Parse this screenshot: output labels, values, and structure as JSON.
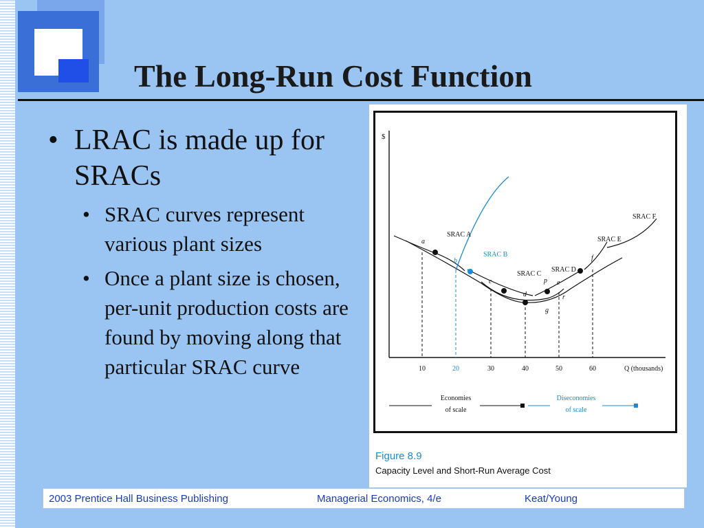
{
  "slide": {
    "title": "The Long-Run Cost Function",
    "bullets": [
      {
        "text": "LRAC is made up for SRACs",
        "sub": [
          "SRAC curves represent various plant sizes",
          "Once a plant size is chosen, per-unit production costs are found by moving along that particular SRAC curve"
        ]
      }
    ]
  },
  "figure": {
    "number": "Figure 8.9",
    "caption": "Capacity Level and Short-Run Average Cost",
    "y_axis_label": "$",
    "x_axis_label": "Q (thousands)",
    "x_ticks": [
      "10",
      "20",
      "30",
      "40",
      "50",
      "60"
    ],
    "curve_labels": [
      "SRAC A",
      "SRAC B",
      "SRAC C",
      "SRAC D",
      "SRAC E",
      "SRAC F"
    ],
    "point_labels": [
      "a",
      "b",
      "c",
      "d",
      "e",
      "f",
      "g",
      "p",
      "r"
    ],
    "economies_label": [
      "Economies",
      "of scale"
    ],
    "diseconomies_label": [
      "Diseconomies",
      "of scale"
    ],
    "colors": {
      "black": "#111111",
      "blue": "#1a8ad4"
    }
  },
  "footer": {
    "publisher": "2003 Prentice Hall Business Publishing",
    "book": "Managerial Economics, 4/e",
    "authors": "Keat/Young"
  }
}
